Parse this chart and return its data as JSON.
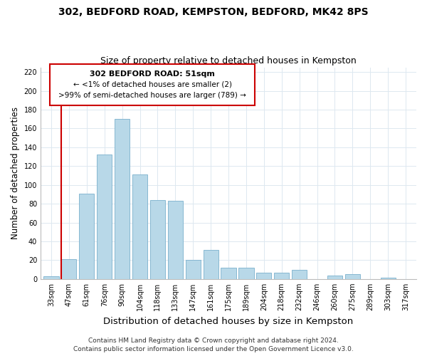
{
  "title": "302, BEDFORD ROAD, KEMPSTON, BEDFORD, MK42 8PS",
  "subtitle": "Size of property relative to detached houses in Kempston",
  "xlabel": "Distribution of detached houses by size in Kempston",
  "ylabel": "Number of detached properties",
  "bar_labels": [
    "33sqm",
    "47sqm",
    "61sqm",
    "76sqm",
    "90sqm",
    "104sqm",
    "118sqm",
    "133sqm",
    "147sqm",
    "161sqm",
    "175sqm",
    "189sqm",
    "204sqm",
    "218sqm",
    "232sqm",
    "246sqm",
    "260sqm",
    "275sqm",
    "289sqm",
    "303sqm",
    "317sqm"
  ],
  "bar_heights": [
    3,
    21,
    91,
    132,
    170,
    111,
    84,
    83,
    20,
    31,
    12,
    12,
    7,
    7,
    10,
    0,
    4,
    5,
    0,
    1,
    0
  ],
  "bar_color": "#b8d8e8",
  "bar_edge_color": "#7ab0cc",
  "vline_color": "#cc0000",
  "ylim": [
    0,
    225
  ],
  "yticks": [
    0,
    20,
    40,
    60,
    80,
    100,
    120,
    140,
    160,
    180,
    200,
    220
  ],
  "annotation_title": "302 BEDFORD ROAD: 51sqm",
  "annotation_line1": "← <1% of detached houses are smaller (2)",
  "annotation_line2": ">99% of semi-detached houses are larger (789) →",
  "annotation_box_color": "#ffffff",
  "annotation_box_edge": "#cc0000",
  "footer1": "Contains HM Land Registry data © Crown copyright and database right 2024.",
  "footer2": "Contains public sector information licensed under the Open Government Licence v3.0.",
  "grid_color": "#dde8f0",
  "title_fontsize": 10,
  "subtitle_fontsize": 9,
  "xlabel_fontsize": 9.5,
  "ylabel_fontsize": 8.5,
  "tick_fontsize": 7,
  "footer_fontsize": 6.5,
  "ann_title_fontsize": 8,
  "ann_text_fontsize": 7.5
}
